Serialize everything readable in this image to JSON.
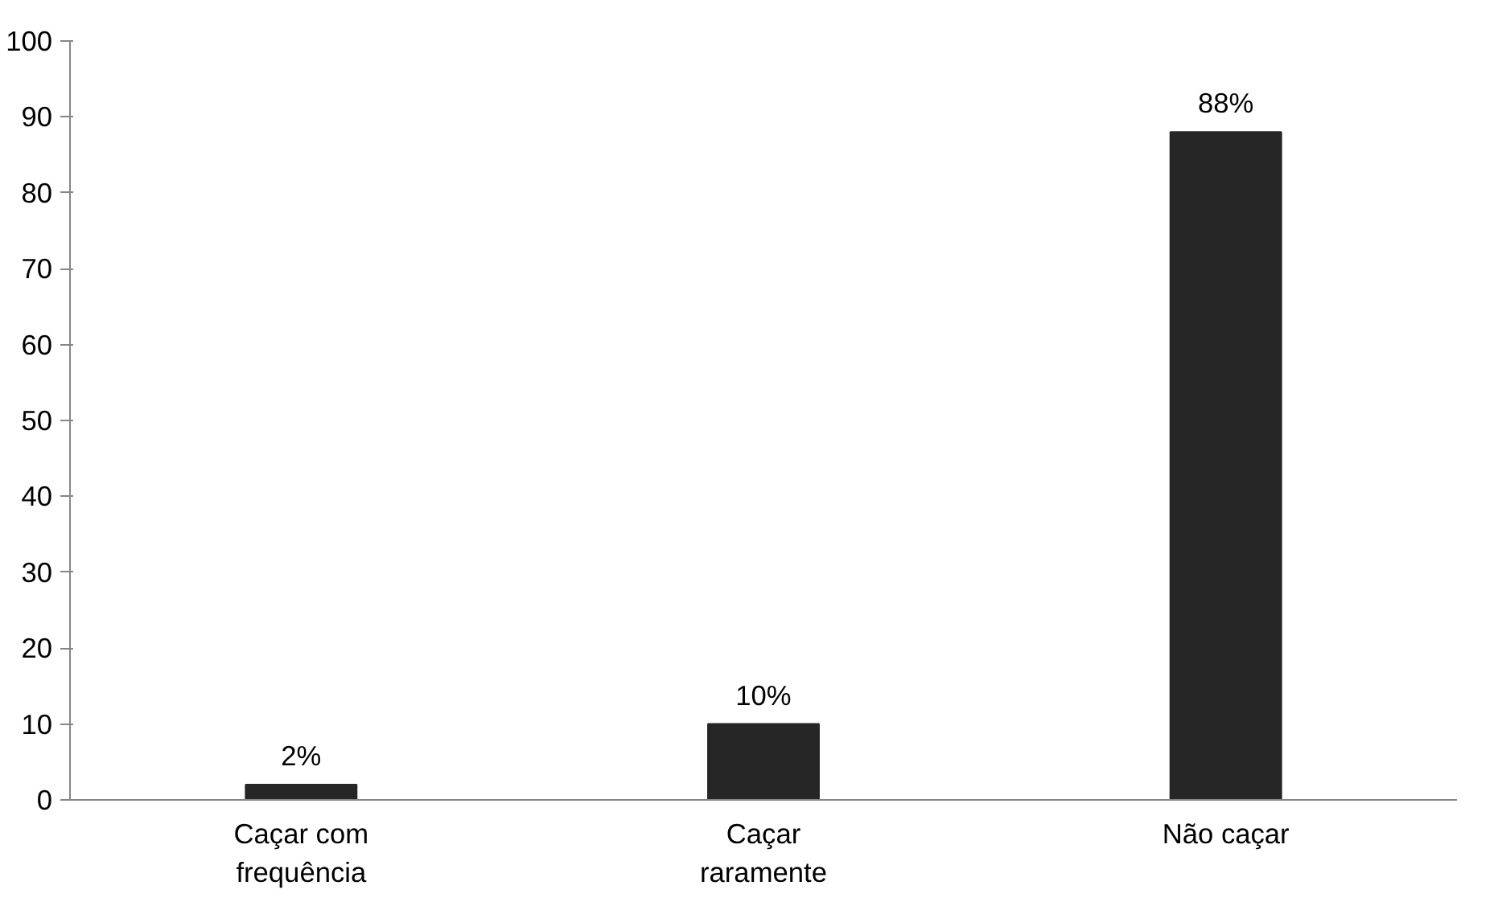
{
  "chart_data": {
    "type": "bar",
    "categories": [
      "Caçar com frequência",
      "Caçar raramente",
      "Não caçar"
    ],
    "values": [
      2,
      10,
      88
    ],
    "color": "#262626",
    "value_labels": [
      "2%",
      "10%",
      "88%"
    ],
    "ylim": [
      0,
      100
    ],
    "yticks": [
      0,
      10,
      20,
      30,
      40,
      50,
      60,
      70,
      80,
      90,
      100
    ],
    "grid": false
  }
}
